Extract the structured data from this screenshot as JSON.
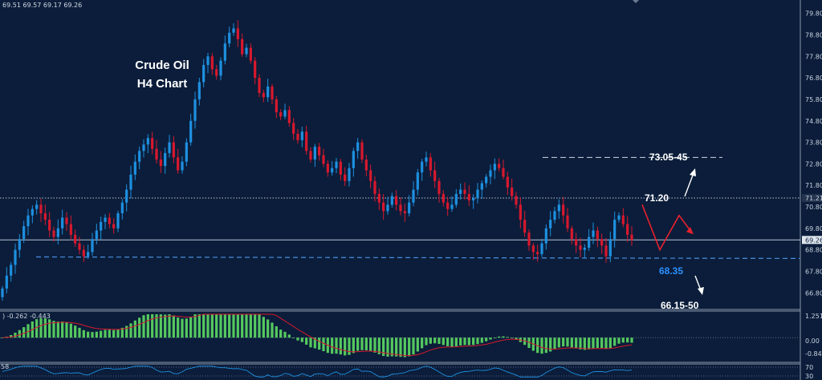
{
  "ohlc_header": "69.51 69.57 69.17 69.26",
  "chart_data": [
    {
      "type": "candlestick",
      "title_lines": [
        "Crude Oil",
        "H4 Chart"
      ],
      "ylim": [
        66.4,
        79.9
      ],
      "y_ticks": [
        "79.80",
        "78.80",
        "77.80",
        "76.80",
        "75.80",
        "74.80",
        "73.80",
        "72.80",
        "71.80",
        "70.80",
        "69.80",
        "68.80",
        "67.80",
        "66.80"
      ],
      "current_price_label": "69.26",
      "level_marker_label": "71.21",
      "closes": [
        67.0,
        67.6,
        68.1,
        68.8,
        69.3,
        69.9,
        70.4,
        70.7,
        70.9,
        70.5,
        70.2,
        69.7,
        69.4,
        69.8,
        70.3,
        70.0,
        69.5,
        69.1,
        68.8,
        68.5,
        68.7,
        69.3,
        69.7,
        70.1,
        70.3,
        70.0,
        69.8,
        70.5,
        71.0,
        71.6,
        72.3,
        72.9,
        73.4,
        73.7,
        74.0,
        73.5,
        73.0,
        72.7,
        73.3,
        73.8,
        73.1,
        72.5,
        72.9,
        73.8,
        74.8,
        75.8,
        76.6,
        77.4,
        77.8,
        77.2,
        76.9,
        77.6,
        78.4,
        78.9,
        79.1,
        78.6,
        77.9,
        78.2,
        77.6,
        76.8,
        76.1,
        75.9,
        76.4,
        75.8,
        75.2,
        75.0,
        75.3,
        74.7,
        74.2,
        73.9,
        74.3,
        73.4,
        73.0,
        73.6,
        73.2,
        72.8,
        72.4,
        72.6,
        72.9,
        72.3,
        72.0,
        72.6,
        73.4,
        73.8,
        73.0,
        72.5,
        72.0,
        71.4,
        71.0,
        70.6,
        70.9,
        71.3,
        70.9,
        70.6,
        70.5,
        71.0,
        71.6,
        72.4,
        72.9,
        73.1,
        72.5,
        72.0,
        71.4,
        71.0,
        70.7,
        70.9,
        71.4,
        71.6,
        71.4,
        71.1,
        71.2,
        71.6,
        71.9,
        72.2,
        72.5,
        72.8,
        72.6,
        72.2,
        71.7,
        71.3,
        70.9,
        70.2,
        69.6,
        69.0,
        68.7,
        68.6,
        69.1,
        69.8,
        70.2,
        70.6,
        70.9,
        70.4,
        69.8,
        69.3,
        69.0,
        68.8,
        68.9,
        69.4,
        69.7,
        69.3,
        69.0,
        68.5,
        69.3,
        70.2,
        70.4,
        70.0,
        69.5,
        69.26
      ],
      "projection": {
        "levels": [
          "73.05-45",
          "71.20",
          "68.35",
          "66.15-50"
        ],
        "path": [
          [
            70.8,
            70.9
          ],
          [
            71.5,
            68.8
          ],
          [
            72.5,
            70.4
          ],
          [
            73.2,
            69.6
          ]
        ]
      },
      "support_line": 68.45,
      "resistance_line": 73.1,
      "indicators": [
        {
          "name": "MACD",
          "label_text": ") -0.262 -0.443",
          "ylim": [
            -1.15,
            1.25
          ],
          "y_ticks": [
            "1.251",
            "0.00",
            "-0.844"
          ]
        },
        {
          "name": "oscillator",
          "label_text": "58",
          "ylim": [
            0,
            100
          ],
          "y_ticks": [
            "70",
            "30"
          ]
        }
      ]
    }
  ],
  "colors": {
    "background": "#0b1d3a",
    "bull_candle": "#1e90e0",
    "bear_candle": "#d8182e",
    "projection": "#e8202e",
    "macd_bars": "#55c95f",
    "signal": "#d8182e",
    "support_label": "#2b8fff"
  }
}
